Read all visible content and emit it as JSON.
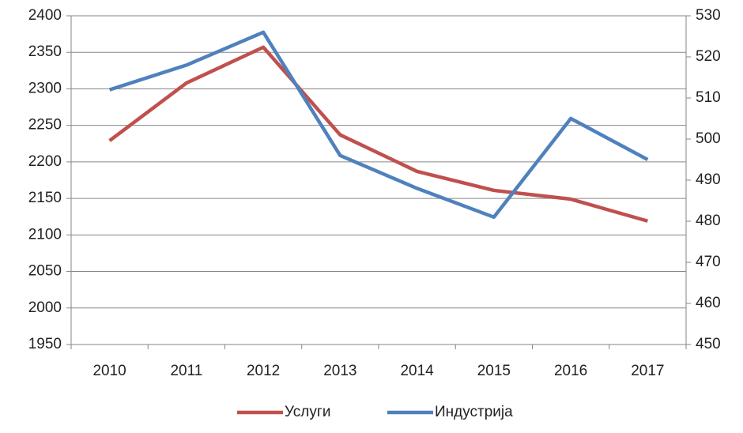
{
  "chart_data": {
    "type": "line",
    "categories": [
      "2010",
      "2011",
      "2012",
      "2013",
      "2014",
      "2015",
      "2016",
      "2017"
    ],
    "series": [
      {
        "name": "Услуги",
        "color": "#c0504d",
        "values": [
          2229,
          2308,
          2357,
          2237,
          2187,
          2161,
          2149,
          2119
        ]
      },
      {
        "name": "Индустрија",
        "color": "#4f81bd",
        "axis": "y2",
        "values": [
          512,
          518,
          526,
          496,
          488,
          481,
          505,
          495
        ]
      }
    ],
    "ylim": [
      1950,
      2400
    ],
    "yticks": [
      1950,
      2000,
      2050,
      2100,
      2150,
      2200,
      2250,
      2300,
      2350,
      2400
    ],
    "y2lim": [
      450,
      530
    ],
    "y2ticks": [
      450,
      460,
      470,
      480,
      490,
      500,
      510,
      520,
      530
    ],
    "grid": true,
    "legend": "bottom"
  }
}
